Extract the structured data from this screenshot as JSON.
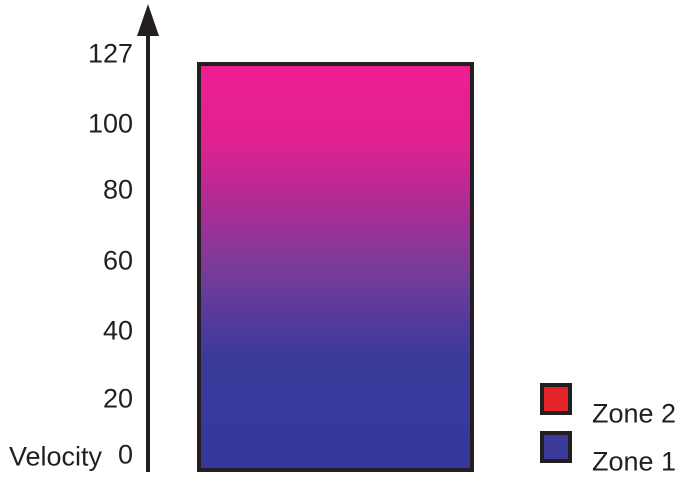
{
  "figure": {
    "background": "#ffffff",
    "ink_color": "#231F20"
  },
  "chart_data": {
    "type": "bar",
    "title": "",
    "xlabel": "",
    "ylabel": "Velocity",
    "ylim": [
      0,
      127
    ],
    "y_ticks": [
      0,
      20,
      40,
      60,
      80,
      100,
      127
    ],
    "y_tick_labels": [
      "127",
      "100",
      "80",
      "60",
      "40",
      "20",
      "0"
    ],
    "grid": false,
    "legend_position": "bottom-right",
    "series": [
      {
        "name": "Zone 1 / Zone 2 velocity crossfade bar",
        "velocity_min": 0,
        "velocity_max": 127,
        "note": "Single vertical bar spanning the full velocity range; color crossfades from Zone 1 blue at velocity 0 to Zone 2 pink/magenta at velocity 127"
      }
    ],
    "gradient_stops": [
      {
        "color": "#ED1E92",
        "pos": 0
      },
      {
        "color": "#E2218F",
        "pos": 18
      },
      {
        "color": "#B02B95",
        "pos": 34
      },
      {
        "color": "#7A3B9A",
        "pos": 50
      },
      {
        "color": "#3B3A9B",
        "pos": 72
      },
      {
        "color": "#34389B",
        "pos": 100
      }
    ]
  },
  "axis": {
    "label": "Velocity"
  },
  "legend": {
    "items": [
      {
        "label": "Zone 2",
        "color": "#E3242B"
      },
      {
        "label": "Zone 1",
        "color": "#3A3A9B"
      }
    ]
  }
}
